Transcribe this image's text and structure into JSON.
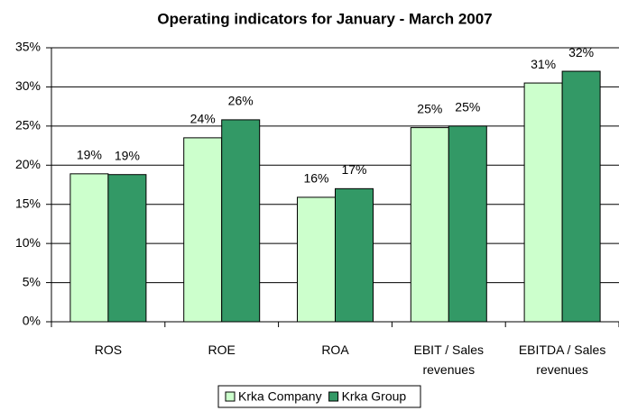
{
  "chart_data": {
    "type": "bar",
    "title": "Operating indicators for January - March 2007",
    "categories": [
      "ROS",
      "ROE",
      "ROA",
      "EBIT / Sales revenues",
      "EBITDA / Sales revenues"
    ],
    "series": [
      {
        "name": "Krka Company",
        "color": "#ccffcc",
        "values": [
          18.9,
          23.5,
          15.9,
          24.8,
          30.5
        ],
        "value_labels": [
          "19%",
          "24%",
          "16%",
          "25%",
          "31%"
        ]
      },
      {
        "name": "Krka Group",
        "color": "#339966",
        "values": [
          18.8,
          25.8,
          17.0,
          25.0,
          32.0
        ],
        "value_labels": [
          "19%",
          "26%",
          "17%",
          "25%",
          "32%"
        ]
      }
    ],
    "ylim": [
      0,
      35
    ],
    "yticks": [
      {
        "value": 0,
        "label": "0%"
      },
      {
        "value": 5,
        "label": "5%"
      },
      {
        "value": 10,
        "label": "10%"
      },
      {
        "value": 15,
        "label": "15%"
      },
      {
        "value": 20,
        "label": "20%"
      },
      {
        "value": 25,
        "label": "25%"
      },
      {
        "value": 30,
        "label": "30%"
      },
      {
        "value": 35,
        "label": "35%"
      }
    ],
    "grid": true,
    "legend": "bottom"
  }
}
